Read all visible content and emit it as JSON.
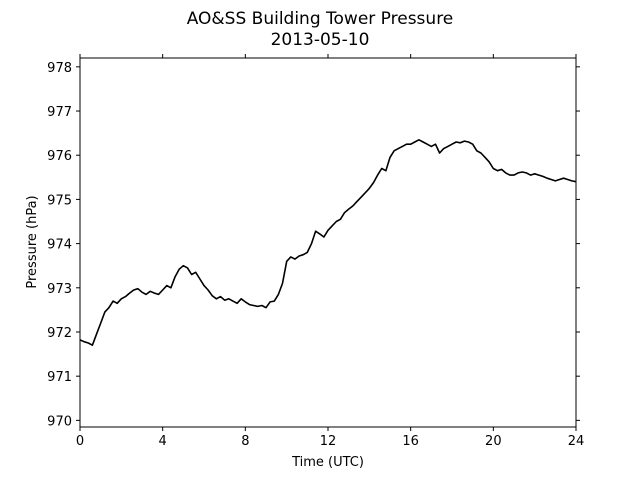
{
  "chart_data": {
    "type": "line",
    "title": "AO&SS Building Tower Pressure",
    "subtitle": "2013-05-10",
    "xlabel": "Time (UTC)",
    "ylabel": "Pressure (hPa)",
    "xlim": [
      0,
      24
    ],
    "ylim": [
      969.85,
      978.2
    ],
    "xticks": [
      0,
      4,
      8,
      12,
      16,
      20,
      24
    ],
    "yticks": [
      970,
      971,
      972,
      973,
      974,
      975,
      976,
      977,
      978
    ],
    "grid": false,
    "line_color": "#000000",
    "series": [
      {
        "x": [
          0,
          0.2,
          0.4,
          0.6,
          0.8,
          1.0,
          1.2,
          1.4,
          1.6,
          1.8,
          2.0,
          2.2,
          2.4,
          2.6,
          2.8,
          3.0,
          3.2,
          3.4,
          3.6,
          3.8,
          4.0,
          4.2,
          4.4,
          4.6,
          4.8,
          5.0,
          5.2,
          5.4,
          5.6,
          5.8,
          6.0,
          6.2,
          6.4,
          6.6,
          6.8,
          7.0,
          7.2,
          7.4,
          7.6,
          7.8,
          8.0,
          8.2,
          8.4,
          8.6,
          8.8,
          9.0,
          9.2,
          9.4,
          9.6,
          9.8,
          10.0,
          10.2,
          10.4,
          10.6,
          10.8,
          11.0,
          11.2,
          11.4,
          11.6,
          11.8,
          12.0,
          12.2,
          12.4,
          12.6,
          12.8,
          13.0,
          13.2,
          13.4,
          13.6,
          13.8,
          14.0,
          14.2,
          14.4,
          14.6,
          14.8,
          15.0,
          15.2,
          15.4,
          15.6,
          15.8,
          16.0,
          16.2,
          16.4,
          16.6,
          16.8,
          17.0,
          17.2,
          17.4,
          17.6,
          17.8,
          18.0,
          18.2,
          18.4,
          18.6,
          18.8,
          19.0,
          19.2,
          19.4,
          19.6,
          19.8,
          20.0,
          20.2,
          20.4,
          20.6,
          20.8,
          21.0,
          21.2,
          21.4,
          21.6,
          21.8,
          22.0,
          22.2,
          22.4,
          22.6,
          22.8,
          23.0,
          23.2,
          23.4,
          23.6,
          23.8,
          24.0
        ],
        "values": [
          971.82,
          971.78,
          971.75,
          971.7,
          971.95,
          972.2,
          972.45,
          972.55,
          972.7,
          972.65,
          972.75,
          972.8,
          972.88,
          972.95,
          972.98,
          972.9,
          972.85,
          972.92,
          972.88,
          972.85,
          972.95,
          973.05,
          973.0,
          973.25,
          973.42,
          973.5,
          973.45,
          973.3,
          973.35,
          973.2,
          973.05,
          972.95,
          972.82,
          972.75,
          972.8,
          972.72,
          972.75,
          972.7,
          972.65,
          972.75,
          972.68,
          972.62,
          972.6,
          972.58,
          972.6,
          972.55,
          972.68,
          972.7,
          972.85,
          973.1,
          973.6,
          973.7,
          973.65,
          973.72,
          973.75,
          973.8,
          974.0,
          974.28,
          974.22,
          974.15,
          974.3,
          974.4,
          974.5,
          974.55,
          974.7,
          974.78,
          974.85,
          974.95,
          975.05,
          975.15,
          975.25,
          975.38,
          975.55,
          975.7,
          975.65,
          975.95,
          976.1,
          976.15,
          976.2,
          976.25,
          976.25,
          976.3,
          976.35,
          976.3,
          976.25,
          976.2,
          976.25,
          976.05,
          976.15,
          976.2,
          976.25,
          976.3,
          976.28,
          976.32,
          976.3,
          976.25,
          976.1,
          976.05,
          975.95,
          975.85,
          975.7,
          975.65,
          975.68,
          975.6,
          975.55,
          975.55,
          975.6,
          975.62,
          975.6,
          975.55,
          975.58,
          975.55,
          975.52,
          975.48,
          975.45,
          975.42,
          975.45,
          975.48,
          975.45,
          975.42,
          975.4
        ]
      }
    ]
  }
}
